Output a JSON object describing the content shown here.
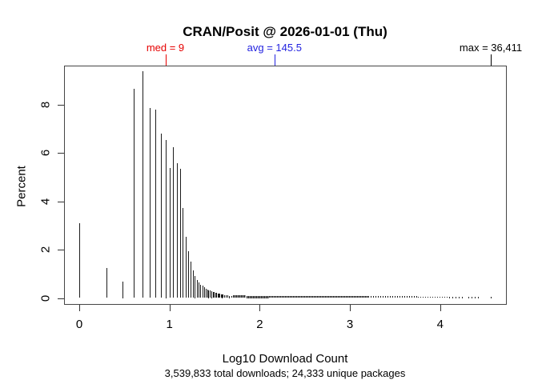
{
  "figure": {
    "title": "CRAN/Posit @ 2026-01-01 (Thu)",
    "caption": "3,539,833 total downloads; 24,333 unique packages",
    "x_axis": {
      "label": "Log10 Download Count"
    },
    "y_axis": {
      "label": "Percent"
    },
    "annotations": [
      {
        "id": "med",
        "label": "med = 9",
        "color": "#e60000",
        "log10": 0.9542
      },
      {
        "id": "avg",
        "label": "avg = 145.5",
        "color": "#2323e0",
        "log10": 2.1629
      },
      {
        "id": "max",
        "label": "max = 36,411",
        "color": "#000000",
        "log10": 4.5612
      }
    ]
  },
  "chart_data": {
    "type": "bar",
    "subtype": "log10-spike-histogram",
    "title": "CRAN/Posit @ 2026-01-01 (Thu)",
    "xlabel": "Log10 Download Count",
    "ylabel": "Percent",
    "xlim": [
      -0.18,
      4.74
    ],
    "ylim": [
      0,
      9.8
    ],
    "x_ticks": [
      0,
      1,
      2,
      3,
      4
    ],
    "y_ticks": [
      0,
      2,
      4,
      6,
      8
    ],
    "grid": false,
    "stats": {
      "median_downloads": 9,
      "mean_downloads": 145.5,
      "max_downloads": 36411,
      "total_downloads_label": "3,539,833",
      "unique_packages_label": "24,333"
    },
    "spikes": [
      {
        "count": 1,
        "percent": 3.1
      },
      {
        "count": 2,
        "percent": 1.25
      },
      {
        "count": 3,
        "percent": 0.68
      },
      {
        "count": 4,
        "percent": 8.66
      },
      {
        "count": 5,
        "percent": 9.38
      },
      {
        "count": 6,
        "percent": 7.86
      },
      {
        "count": 7,
        "percent": 7.81
      },
      {
        "count": 8,
        "percent": 6.82
      },
      {
        "count": 9,
        "percent": 6.56
      },
      {
        "count": 10,
        "percent": 5.38
      },
      {
        "count": 11,
        "percent": 6.23
      },
      {
        "count": 12,
        "percent": 5.59
      },
      {
        "count": 13,
        "percent": 5.36
      },
      {
        "count": 14,
        "percent": 3.73
      },
      {
        "count": 15,
        "percent": 2.53
      },
      {
        "count": 16,
        "percent": 1.93
      },
      {
        "count": 17,
        "percent": 1.52
      },
      {
        "count": 18,
        "percent": 1.13
      },
      {
        "count": 19,
        "percent": 0.91
      },
      {
        "count": 20,
        "percent": 0.75
      },
      {
        "count": 21,
        "percent": 0.64
      },
      {
        "count": 22,
        "percent": 0.55
      },
      {
        "count": 23,
        "percent": 0.5
      },
      {
        "count": 24,
        "percent": 0.44
      },
      {
        "count": 25,
        "percent": 0.39
      },
      {
        "count": 26,
        "percent": 0.35
      },
      {
        "count": 27,
        "percent": 0.33
      },
      {
        "count": 28,
        "percent": 0.3
      },
      {
        "count": 29,
        "percent": 0.28
      },
      {
        "count": 30,
        "percent": 0.26
      },
      {
        "count": 31,
        "percent": 0.24
      },
      {
        "count": 32,
        "percent": 0.22
      },
      {
        "count": 33,
        "percent": 0.21
      },
      {
        "count": 34,
        "percent": 0.19
      },
      {
        "count": 35,
        "percent": 0.18
      },
      {
        "count": 36,
        "percent": 0.17
      },
      {
        "count": 37,
        "percent": 0.16
      },
      {
        "count": 38,
        "percent": 0.15
      },
      {
        "count": 39,
        "percent": 0.14
      },
      {
        "count": 40,
        "percent": 0.13
      },
      {
        "count": 42,
        "percent": 0.12
      },
      {
        "count": 44,
        "percent": 0.11
      },
      {
        "count": 46,
        "percent": 0.1
      },
      {
        "count": 48,
        "percent": 0.09
      },
      {
        "count": 50,
        "percent": 0.08
      },
      {
        "count": 36411,
        "percent": 0.05
      }
    ],
    "tail_segments": [
      {
        "log10_from": 1.7,
        "log10_to": 1.85,
        "height_percent": 0.12,
        "density": "dense"
      },
      {
        "log10_from": 1.85,
        "log10_to": 2.1,
        "height_percent": 0.1,
        "density": "dense"
      },
      {
        "log10_from": 2.1,
        "log10_to": 2.6,
        "height_percent": 0.08,
        "density": "dense"
      },
      {
        "log10_from": 2.6,
        "log10_to": 3.2,
        "height_percent": 0.07,
        "density": "dense"
      },
      {
        "log10_from": 3.2,
        "log10_to": 3.75,
        "height_percent": 0.07,
        "density": "medium"
      },
      {
        "log10_from": 3.75,
        "log10_to": 4.1,
        "height_percent": 0.06,
        "density": "medium"
      },
      {
        "log10_from": 4.1,
        "log10_to": 4.28,
        "height_percent": 0.05,
        "density": "sparse"
      },
      {
        "log10_from": 4.31,
        "log10_to": 4.45,
        "height_percent": 0.05,
        "density": "sparse"
      }
    ]
  }
}
